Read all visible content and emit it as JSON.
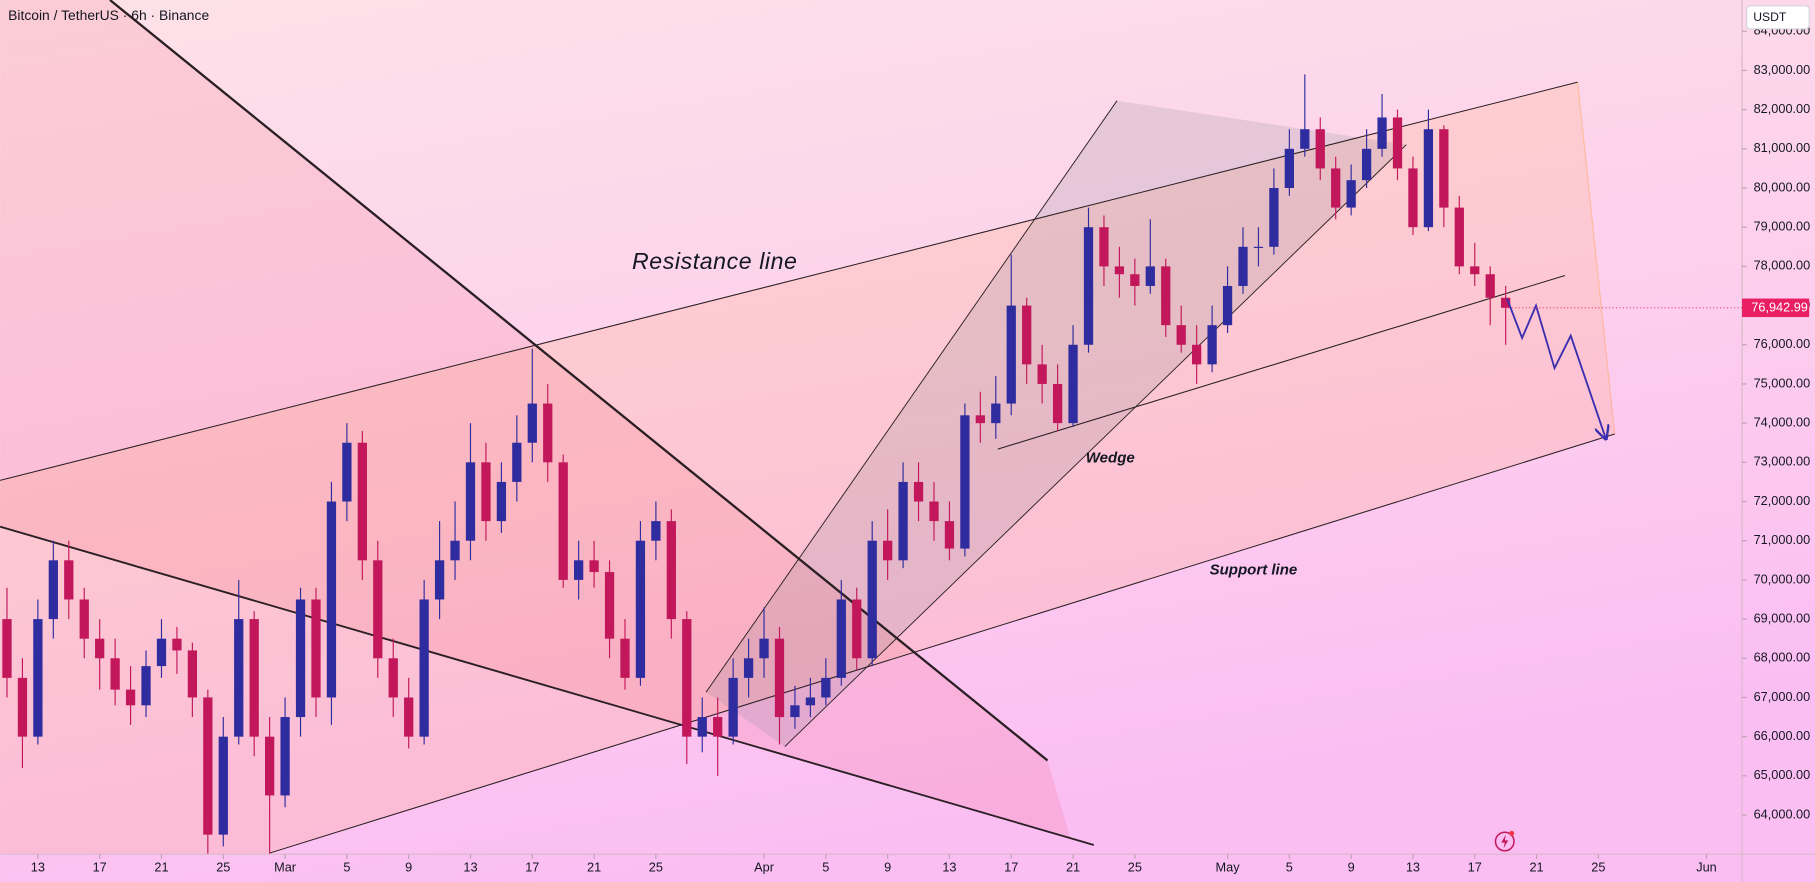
{
  "chart_data": {
    "type": "candlestick",
    "title": "Bitcoin / TetherUS · 6h · Binance",
    "currency": "USDT",
    "annotations": [
      "Resistance line",
      "Wedge",
      "Support line"
    ],
    "up_color": "#2e2c9f",
    "down_color": "#c2185b",
    "last_price": {
      "value": 76942.99,
      "label": "76,942.99"
    },
    "last_price_color": "#e91e63",
    "xlim": [
      "Feb 11",
      "Jun 3"
    ],
    "xticks": [
      {
        "value": "Feb 13",
        "label": "13"
      },
      {
        "value": "Feb 17",
        "label": "17"
      },
      {
        "value": "Feb 21",
        "label": "21"
      },
      {
        "value": "Feb 25",
        "label": "25"
      },
      {
        "value": "Mar 1",
        "label": "Mar"
      },
      {
        "value": "Mar 5",
        "label": "5"
      },
      {
        "value": "Mar 9",
        "label": "9"
      },
      {
        "value": "Mar 13",
        "label": "13"
      },
      {
        "value": "Mar 17",
        "label": "17"
      },
      {
        "value": "Mar 21",
        "label": "21"
      },
      {
        "value": "Mar 25",
        "label": "25"
      },
      {
        "value": "Apr 1",
        "label": "Apr"
      },
      {
        "value": "Apr 5",
        "label": "5"
      },
      {
        "value": "Apr 9",
        "label": "9"
      },
      {
        "value": "Apr 13",
        "label": "13"
      },
      {
        "value": "Apr 17",
        "label": "17"
      },
      {
        "value": "Apr 21",
        "label": "21"
      },
      {
        "value": "Apr 25",
        "label": "25"
      },
      {
        "value": "May 1",
        "label": "May"
      },
      {
        "value": "May 5",
        "label": "5"
      },
      {
        "value": "May 9",
        "label": "9"
      },
      {
        "value": "May 13",
        "label": "13"
      },
      {
        "value": "May 17",
        "label": "17"
      },
      {
        "value": "May 21",
        "label": "21"
      },
      {
        "value": "May 25",
        "label": "25"
      },
      {
        "value": "Jun 1",
        "label": "Jun"
      }
    ],
    "ylim": [
      63000,
      84000
    ],
    "yticks": [
      {
        "value": 64000,
        "label": "64,000.00"
      },
      {
        "value": 65000,
        "label": "65,000.00"
      },
      {
        "value": 66000,
        "label": "66,000.00"
      },
      {
        "value": 67000,
        "label": "67,000.00"
      },
      {
        "value": 68000,
        "label": "68,000.00"
      },
      {
        "value": 69000,
        "label": "69,000.00"
      },
      {
        "value": 70000,
        "label": "70,000.00"
      },
      {
        "value": 71000,
        "label": "71,000.00"
      },
      {
        "value": 72000,
        "label": "72,000.00"
      },
      {
        "value": 73000,
        "label": "73,000.00"
      },
      {
        "value": 74000,
        "label": "74,000.00"
      },
      {
        "value": 75000,
        "label": "75,000.00"
      },
      {
        "value": 76000,
        "label": "76,000.00"
      },
      {
        "value": 77000,
        "label": "77,000.00"
      },
      {
        "value": 78000,
        "label": "78,000.00"
      },
      {
        "value": 79000,
        "label": "79,000.00"
      },
      {
        "value": 80000,
        "label": "80,000.00"
      },
      {
        "value": 81000,
        "label": "81,000.00"
      },
      {
        "value": 82000,
        "label": "82,000.00"
      },
      {
        "value": 83000,
        "label": "83,000.00"
      },
      {
        "value": 84000,
        "label": "84,000.00"
      }
    ],
    "x": [
      "Feb 11",
      "Feb 12",
      "Feb 13",
      "Feb 14",
      "Feb 15",
      "Feb 16",
      "Feb 17",
      "Feb 18",
      "Feb 19",
      "Feb 20",
      "Feb 21",
      "Feb 22",
      "Feb 23",
      "Feb 24",
      "Feb 25",
      "Feb 26",
      "Feb 27",
      "Feb 28",
      "Mar 1",
      "Mar 2",
      "Mar 3",
      "Mar 4",
      "Mar 5",
      "Mar 6",
      "Mar 7",
      "Mar 8",
      "Mar 9",
      "Mar 10",
      "Mar 11",
      "Mar 12",
      "Mar 13",
      "Mar 14",
      "Mar 15",
      "Mar 16",
      "Mar 17",
      "Mar 18",
      "Mar 19",
      "Mar 20",
      "Mar 21",
      "Mar 22",
      "Mar 23",
      "Mar 24",
      "Mar 25",
      "Mar 26",
      "Mar 27",
      "Mar 28",
      "Mar 29",
      "Mar 30",
      "Mar 31",
      "Apr 1",
      "Apr 2",
      "Apr 3",
      "Apr 4",
      "Apr 5",
      "Apr 6",
      "Apr 7",
      "Apr 8",
      "Apr 9",
      "Apr 10",
      "Apr 11",
      "Apr 12",
      "Apr 13",
      "Apr 14",
      "Apr 15",
      "Apr 16",
      "Apr 17",
      "Apr 18",
      "Apr 19",
      "Apr 20",
      "Apr 21",
      "Apr 22",
      "Apr 23",
      "Apr 24",
      "Apr 25",
      "Apr 26",
      "Apr 27",
      "Apr 28",
      "Apr 29",
      "Apr 30",
      "May 1",
      "May 2",
      "May 3",
      "May 4",
      "May 5",
      "May 6",
      "May 7",
      "May 8",
      "May 9",
      "May 10",
      "May 11",
      "May 12",
      "May 13",
      "May 14",
      "May 15",
      "May 16",
      "May 17",
      "May 18",
      "May 19"
    ],
    "open": [
      69000,
      67500,
      66000,
      69000,
      70500,
      69500,
      68500,
      68000,
      67200,
      66800,
      67800,
      68500,
      68200,
      67000,
      63500,
      66000,
      69000,
      66000,
      64500,
      66500,
      69500,
      67000,
      72000,
      73500,
      70500,
      68000,
      67000,
      66000,
      69500,
      70500,
      71000,
      73000,
      71500,
      72500,
      73500,
      74500,
      73000,
      70000,
      70500,
      70200,
      68500,
      67500,
      71000,
      71500,
      69000,
      66000,
      66500,
      66000,
      67500,
      68000,
      68500,
      66500,
      66800,
      67000,
      67500,
      69500,
      68000,
      71000,
      70500,
      72500,
      72000,
      71500,
      70800,
      74200,
      74000,
      74500,
      77000,
      75500,
      75000,
      74000,
      76000,
      79000,
      78000,
      77800,
      77500,
      78000,
      76500,
      76000,
      75500,
      76500,
      77500,
      78500,
      78500,
      80000,
      81000,
      81500,
      80500,
      79500,
      80200,
      81000,
      81800,
      80500,
      79000,
      81500,
      79500,
      78000,
      77800,
      77200
    ],
    "high": [
      69800,
      68000,
      69500,
      71000,
      71000,
      69800,
      69000,
      68500,
      67800,
      68200,
      69000,
      68800,
      68400,
      67200,
      66500,
      70000,
      69200,
      66500,
      67000,
      69800,
      69800,
      72500,
      74000,
      73800,
      71000,
      68500,
      67500,
      70000,
      71500,
      72000,
      74000,
      73500,
      73000,
      74200,
      75900,
      75000,
      73200,
      71000,
      71000,
      70500,
      69000,
      71500,
      72000,
      71800,
      69200,
      67000,
      67000,
      68000,
      68500,
      69300,
      68800,
      67300,
      67500,
      68000,
      70000,
      69800,
      71500,
      71800,
      73000,
      73000,
      72500,
      72000,
      74500,
      74800,
      75200,
      78300,
      77200,
      76000,
      75500,
      76500,
      79500,
      79300,
      78500,
      78200,
      79200,
      78200,
      77000,
      76500,
      77000,
      78000,
      79000,
      79000,
      80500,
      81500,
      82900,
      81800,
      80800,
      80600,
      81500,
      82400,
      82000,
      80800,
      82000,
      81600,
      79800,
      78600,
      78000,
      77500
    ],
    "low": [
      67000,
      65200,
      65800,
      68500,
      69000,
      68000,
      67200,
      66800,
      66300,
      66500,
      67500,
      67600,
      66500,
      63000,
      63200,
      65800,
      65500,
      63000,
      64200,
      66000,
      66500,
      66300,
      71500,
      70000,
      67500,
      66500,
      65700,
      65800,
      69000,
      70000,
      70500,
      71000,
      71200,
      72000,
      73000,
      72500,
      69800,
      69500,
      69800,
      68000,
      67200,
      67300,
      70500,
      68500,
      65300,
      65600,
      65000,
      65800,
      67000,
      67500,
      65800,
      66200,
      66500,
      66800,
      67300,
      67700,
      67800,
      70000,
      70300,
      71500,
      71000,
      70500,
      70600,
      73500,
      73600,
      74200,
      75000,
      74500,
      73800,
      73900,
      75800,
      77500,
      77200,
      77000,
      77300,
      76200,
      75800,
      75000,
      75300,
      76300,
      77300,
      78000,
      78300,
      79800,
      80800,
      80200,
      79200,
      79300,
      80000,
      80800,
      80200,
      78800,
      78900,
      79000,
      77800,
      77500,
      76500,
      76000
    ],
    "close": [
      67500,
      66000,
      69000,
      70500,
      69500,
      68500,
      68000,
      67200,
      66800,
      67800,
      68500,
      68200,
      67000,
      63500,
      66000,
      69000,
      66000,
      64500,
      66500,
      69500,
      67000,
      72000,
      73500,
      70500,
      68000,
      67000,
      66000,
      69500,
      70500,
      71000,
      73000,
      71500,
      72500,
      73500,
      74500,
      73000,
      70000,
      70500,
      70200,
      68500,
      67500,
      71000,
      71500,
      69000,
      66000,
      66500,
      66000,
      67500,
      68000,
      68500,
      66500,
      66800,
      67000,
      67500,
      69500,
      68000,
      71000,
      70500,
      72500,
      72000,
      71500,
      70800,
      74200,
      74000,
      74500,
      77000,
      75500,
      75000,
      74000,
      76000,
      79000,
      78000,
      77800,
      77500,
      78000,
      76500,
      76000,
      75500,
      76500,
      77500,
      78500,
      78500,
      80000,
      81000,
      81500,
      80500,
      79500,
      80200,
      81000,
      81800,
      80500,
      79000,
      81500,
      79500,
      78000,
      77800,
      77200,
      76942.99
    ]
  }
}
